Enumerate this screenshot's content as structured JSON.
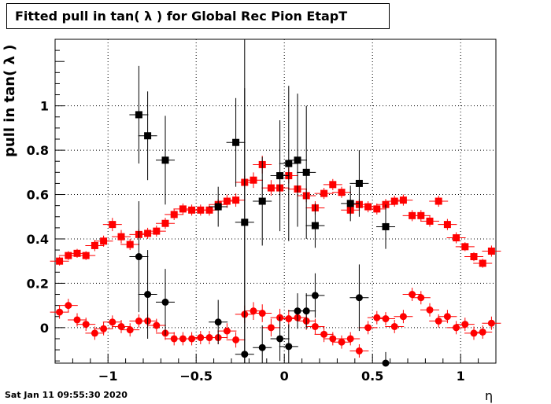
{
  "title": "Fitted pull in tan( λ ) for Global Rec Pion EtapT",
  "timestamp": "Sat Jan 11 09:55:30 2020",
  "chart_data": {
    "type": "scatter",
    "title": "Fitted pull in tan( λ ) for Global Rec Pion EtapT",
    "xlabel": "η",
    "ylabel": "pull in tan( λ )",
    "xlim": [
      -1.3,
      1.2
    ],
    "ylim": [
      -0.16,
      1.3
    ],
    "xticks": [
      -1,
      -0.5,
      0,
      0.5,
      1
    ],
    "xtick_labels": [
      "−1",
      "−0.5",
      "0",
      "0.5",
      "1"
    ],
    "yticks": [
      0,
      0.2,
      0.4,
      0.6,
      0.8,
      1
    ],
    "ytick_labels": [
      "0",
      "0.2",
      "0.4",
      "0.6",
      "0.8",
      "1"
    ],
    "grid": true,
    "series": [
      {
        "color": "#ff0000",
        "marker": "square",
        "x": [
          -1.275,
          -1.225,
          -1.175,
          -1.125,
          -1.075,
          -1.025,
          -0.975,
          -0.925,
          -0.875,
          -0.825,
          -0.775,
          -0.725,
          -0.675,
          -0.625,
          -0.575,
          -0.525,
          -0.475,
          -0.425,
          -0.375,
          -0.325,
          -0.275,
          -0.225,
          -0.175,
          -0.125,
          -0.075,
          -0.025,
          0.025,
          0.075,
          0.125,
          0.175,
          0.225,
          0.275,
          0.325,
          0.375,
          0.425,
          0.475,
          0.525,
          0.575,
          0.625,
          0.675,
          0.725,
          0.775,
          0.825,
          0.875,
          0.925,
          0.975,
          1.025,
          1.075,
          1.125,
          1.175
        ],
        "y": [
          0.3,
          0.325,
          0.335,
          0.325,
          0.37,
          0.39,
          0.465,
          0.41,
          0.375,
          0.42,
          0.425,
          0.435,
          0.47,
          0.51,
          0.535,
          0.53,
          0.53,
          0.53,
          0.555,
          0.57,
          0.575,
          0.655,
          0.665,
          0.735,
          0.63,
          0.63,
          0.685,
          0.625,
          0.595,
          0.54,
          0.605,
          0.645,
          0.61,
          0.53,
          0.555,
          0.545,
          0.535,
          0.555,
          0.57,
          0.575,
          0.505,
          0.505,
          0.48,
          0.57,
          0.465,
          0.405,
          0.365,
          0.32,
          0.29,
          0.345
        ],
        "yerr": [
          0.02,
          0.02,
          0.02,
          0.02,
          0.025,
          0.025,
          0.03,
          0.03,
          0.025,
          0.025,
          0.025,
          0.025,
          0.025,
          0.025,
          0.025,
          0.025,
          0.025,
          0.025,
          0.025,
          0.03,
          0.03,
          0.03,
          0.035,
          0.04,
          0.035,
          0.035,
          0.035,
          0.035,
          0.03,
          0.03,
          0.025,
          0.025,
          0.025,
          0.025,
          0.025,
          0.025,
          0.025,
          0.025,
          0.025,
          0.025,
          0.025,
          0.025,
          0.025,
          0.025,
          0.025,
          0.025,
          0.02,
          0.02,
          0.02,
          0.025
        ]
      },
      {
        "color": "#ff0000",
        "marker": "circle",
        "x": [
          -1.275,
          -1.225,
          -1.175,
          -1.125,
          -1.075,
          -1.025,
          -0.975,
          -0.925,
          -0.875,
          -0.825,
          -0.775,
          -0.725,
          -0.675,
          -0.625,
          -0.575,
          -0.525,
          -0.475,
          -0.425,
          -0.375,
          -0.325,
          -0.275,
          -0.225,
          -0.175,
          -0.125,
          -0.075,
          -0.025,
          0.025,
          0.075,
          0.125,
          0.175,
          0.225,
          0.275,
          0.325,
          0.375,
          0.425,
          0.475,
          0.525,
          0.575,
          0.625,
          0.675,
          0.725,
          0.775,
          0.825,
          0.875,
          0.925,
          0.975,
          1.025,
          1.075,
          1.125,
          1.175
        ],
        "y": [
          0.07,
          0.1,
          0.035,
          0.015,
          -0.025,
          -0.005,
          0.025,
          0.005,
          -0.01,
          0.03,
          0.03,
          0.01,
          -0.025,
          -0.05,
          -0.05,
          -0.05,
          -0.045,
          -0.045,
          -0.045,
          -0.015,
          -0.055,
          0.06,
          0.075,
          0.065,
          0.0,
          0.045,
          0.04,
          0.045,
          0.03,
          0.005,
          -0.03,
          -0.05,
          -0.065,
          -0.05,
          -0.105,
          0.0,
          0.045,
          0.04,
          0.005,
          0.05,
          0.15,
          0.135,
          0.08,
          0.03,
          0.05,
          0.0,
          0.015,
          -0.025,
          -0.02,
          0.02
        ],
        "yerr": [
          0.03,
          0.03,
          0.03,
          0.03,
          0.03,
          0.03,
          0.03,
          0.03,
          0.03,
          0.03,
          0.03,
          0.03,
          0.03,
          0.03,
          0.03,
          0.03,
          0.03,
          0.03,
          0.03,
          0.035,
          0.035,
          0.04,
          0.04,
          0.04,
          0.04,
          0.04,
          0.04,
          0.04,
          0.04,
          0.035,
          0.035,
          0.03,
          0.03,
          0.03,
          0.03,
          0.03,
          0.03,
          0.03,
          0.03,
          0.03,
          0.03,
          0.03,
          0.03,
          0.03,
          0.03,
          0.03,
          0.03,
          0.03,
          0.03,
          0.03
        ]
      },
      {
        "color": "#000000",
        "marker": "square",
        "x": [
          -0.825,
          -0.775,
          -0.675,
          -0.375,
          -0.275,
          -0.225,
          -0.125,
          -0.025,
          0.025,
          0.075,
          0.125,
          0.175,
          0.375,
          0.425,
          0.575
        ],
        "y": [
          0.96,
          0.865,
          0.755,
          0.545,
          0.835,
          0.475,
          0.57,
          0.685,
          0.74,
          0.755,
          0.7,
          0.46,
          0.56,
          0.65,
          0.455
        ],
        "yerr": [
          0.22,
          0.2,
          0.2,
          0.09,
          0.2,
          0.9,
          0.2,
          0.25,
          0.35,
          0.3,
          0.3,
          0.1,
          0.08,
          0.15,
          0.1
        ]
      },
      {
        "color": "#000000",
        "marker": "circle",
        "x": [
          -0.825,
          -0.775,
          -0.675,
          -0.375,
          -0.225,
          -0.125,
          -0.025,
          0.025,
          0.075,
          0.125,
          0.175,
          0.425,
          0.575
        ],
        "y": [
          0.32,
          0.15,
          0.115,
          0.025,
          -0.12,
          -0.09,
          -0.05,
          -0.085,
          0.075,
          0.075,
          0.145,
          0.135,
          -0.16
        ],
        "yerr": [
          0.25,
          0.2,
          0.15,
          0.1,
          1.2,
          0.1,
          0.1,
          0.1,
          0.08,
          0.08,
          0.1,
          0.15,
          0.05
        ]
      }
    ]
  }
}
